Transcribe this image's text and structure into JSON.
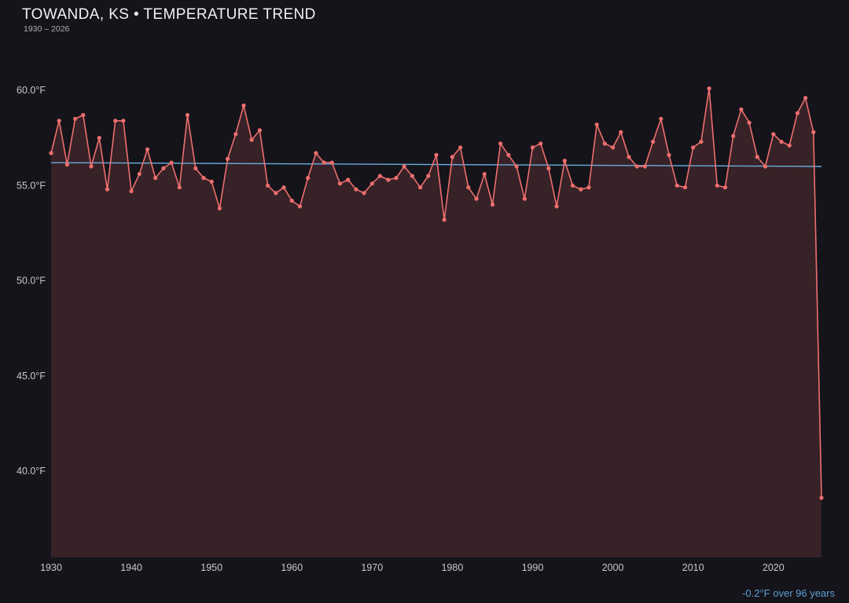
{
  "header": {
    "title": "TOWANDA, KS • TEMPERATURE TREND",
    "subtitle": "1930 – 2026"
  },
  "annotation": {
    "trend_label": "-0.2°F over 96 years"
  },
  "colors": {
    "background": "#14141a",
    "line": "#ef6e6e",
    "point": "#ef6e6e",
    "area_fill": "rgba(239,110,110,0.16)",
    "trend_line": "#6aaede",
    "tick_text": "#c9c9c9",
    "title_text": "#f2f2f2",
    "subtitle_text": "#b0b0b0",
    "annotation_text": "#5f9fd6"
  },
  "chart_data": {
    "type": "line",
    "title": "TOWANDA, KS • TEMPERATURE TREND",
    "subtitle": "1930 – 2026",
    "xlabel": "",
    "ylabel": "",
    "x_range": [
      1930,
      2026
    ],
    "ylim_ticks": [
      40,
      60
    ],
    "grid": false,
    "legend": "none",
    "x": [
      1930,
      1931,
      1932,
      1933,
      1934,
      1935,
      1936,
      1937,
      1938,
      1939,
      1940,
      1941,
      1942,
      1943,
      1944,
      1945,
      1946,
      1947,
      1948,
      1949,
      1950,
      1951,
      1952,
      1953,
      1954,
      1955,
      1956,
      1957,
      1958,
      1959,
      1960,
      1961,
      1962,
      1963,
      1964,
      1965,
      1966,
      1967,
      1968,
      1969,
      1970,
      1971,
      1972,
      1973,
      1974,
      1975,
      1976,
      1977,
      1978,
      1979,
      1980,
      1981,
      1982,
      1983,
      1984,
      1985,
      1986,
      1987,
      1988,
      1989,
      1990,
      1991,
      1992,
      1993,
      1994,
      1995,
      1996,
      1997,
      1998,
      1999,
      2000,
      2001,
      2002,
      2003,
      2004,
      2005,
      2006,
      2007,
      2008,
      2009,
      2010,
      2011,
      2012,
      2013,
      2014,
      2015,
      2016,
      2017,
      2018,
      2019,
      2020,
      2021,
      2022,
      2023,
      2024,
      2025,
      2026
    ],
    "values": [
      56.7,
      58.4,
      56.1,
      58.5,
      58.7,
      56.0,
      57.5,
      54.8,
      58.4,
      58.4,
      54.7,
      55.6,
      56.9,
      55.4,
      55.9,
      56.2,
      54.9,
      58.7,
      55.9,
      55.4,
      55.2,
      53.8,
      56.4,
      57.7,
      59.2,
      57.4,
      57.9,
      55.0,
      54.6,
      54.9,
      54.2,
      53.9,
      55.4,
      56.7,
      56.2,
      56.2,
      55.1,
      55.3,
      54.8,
      54.6,
      55.1,
      55.5,
      55.3,
      55.4,
      56.0,
      55.5,
      54.9,
      55.5,
      56.6,
      53.2,
      56.5,
      57.0,
      54.9,
      54.3,
      55.6,
      54.0,
      57.2,
      56.6,
      56.0,
      54.3,
      57.0,
      57.2,
      55.9,
      53.9,
      56.3,
      55.0,
      54.8,
      54.9,
      58.2,
      57.2,
      57.0,
      57.8,
      56.5,
      56.0,
      56.0,
      57.3,
      58.5,
      56.6,
      55.0,
      54.9,
      57.0,
      57.3,
      60.1,
      55.0,
      54.9,
      57.6,
      59.0,
      58.3,
      56.5,
      56.0,
      57.7,
      57.3,
      57.1,
      58.8,
      59.6,
      57.8,
      38.6
    ],
    "trend": {
      "start_year": 1930,
      "end_year": 2026,
      "start_value": 56.2,
      "end_value": 56.0,
      "label": "-0.2°F over 96 years"
    },
    "ytick_values": [
      40,
      45,
      50,
      55,
      60
    ],
    "ytick_labels": [
      "40.0°F",
      "45.0°F",
      "50.0°F",
      "55.0°F",
      "60.0°F"
    ],
    "xtick_values": [
      1930,
      1940,
      1950,
      1960,
      1970,
      1980,
      1990,
      2000,
      2010,
      2020
    ],
    "xtick_labels": [
      "1930",
      "1940",
      "1950",
      "1960",
      "1970",
      "1980",
      "1990",
      "2000",
      "2010",
      "2020"
    ]
  }
}
